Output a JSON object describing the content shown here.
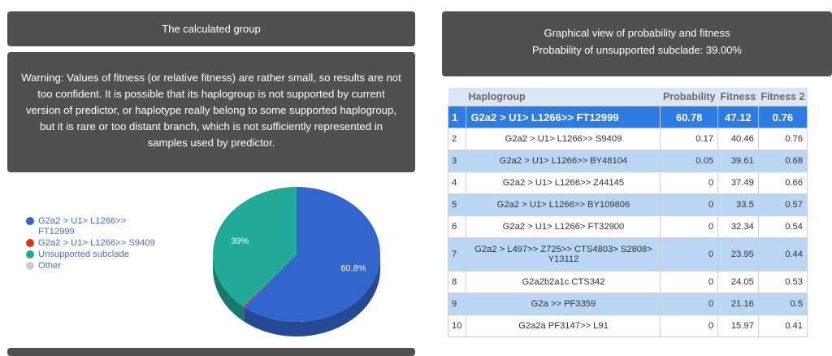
{
  "left": {
    "calc_title": "The calculated group",
    "warning": "Warning: Values of fitness (or relative fitness) are rather small, so results are not too confident. It is possible that its haplogroup is not supported by current version of predictor, or haplotype really belong to some supported haplogroup, but it is rare or too distant branch, which is not sufficiently represented in samples used by predictor.",
    "legend": [
      {
        "label": "G2a2 > U1> L1266>> FT12999",
        "color": "#3366cc"
      },
      {
        "label": "G2a2 > U1> L1266>> S9409",
        "color": "#dc3912"
      },
      {
        "label": "Unsupported subclade",
        "color": "#22aa99"
      },
      {
        "label": "Other",
        "color": "#cccccc"
      }
    ]
  },
  "chart_data": {
    "type": "pie",
    "slices": [
      {
        "name": "G2a2 > U1> L1266>> FT12999",
        "value": 60.8,
        "label": "60.8%",
        "color": "#3366cc"
      },
      {
        "name": "G2a2 > U1> L1266>> S9409",
        "value": 0.17,
        "label": "",
        "color": "#dc3912"
      },
      {
        "name": "Unsupported subclade",
        "value": 39.0,
        "label": "39%",
        "color": "#22aa99"
      }
    ]
  },
  "right": {
    "title_line1": "Graphical view of probability and fitness",
    "title_line2": "Probability of unsupported subclade: 39.00%",
    "table": {
      "headers": [
        "Haplogroup",
        "Probability",
        "Fitness",
        "Fitness 2"
      ],
      "rows": [
        {
          "idx": "1",
          "name": "G2a2 > U1> L1266>> FT12999",
          "prob": "60.78",
          "fit": "47.12",
          "fit2": "0.76"
        },
        {
          "idx": "2",
          "name": "G2a2 > U1> L1266>> S9409",
          "prob": "0.17",
          "fit": "40.46",
          "fit2": "0.76"
        },
        {
          "idx": "3",
          "name": "G2a2 > U1> L1266>> BY48104",
          "prob": "0.05",
          "fit": "39.61",
          "fit2": "0.68"
        },
        {
          "idx": "4",
          "name": "G2a2 > U1> L1266>> Z44145",
          "prob": "0",
          "fit": "37.49",
          "fit2": "0.66"
        },
        {
          "idx": "5",
          "name": "G2a2 > U1> L1266>> BY109806",
          "prob": "0",
          "fit": "33.5",
          "fit2": "0.57"
        },
        {
          "idx": "6",
          "name": "G2a2 > U1> L1266> FT32900",
          "prob": "0",
          "fit": "32.34",
          "fit2": "0.54"
        },
        {
          "idx": "7",
          "name": "G2a2 > L497>> Z725>> CTS4803> S2808> Y13112",
          "prob": "0",
          "fit": "23.95",
          "fit2": "0.44"
        },
        {
          "idx": "8",
          "name": "G2a2b2a1c CTS342",
          "prob": "0",
          "fit": "24.05",
          "fit2": "0.53"
        },
        {
          "idx": "9",
          "name": "G2a >> PF3359",
          "prob": "0",
          "fit": "21.16",
          "fit2": "0.5"
        },
        {
          "idx": "10",
          "name": "G2a2a PF3147>> L91",
          "prob": "0",
          "fit": "15.97",
          "fit2": "0.41"
        }
      ]
    }
  }
}
